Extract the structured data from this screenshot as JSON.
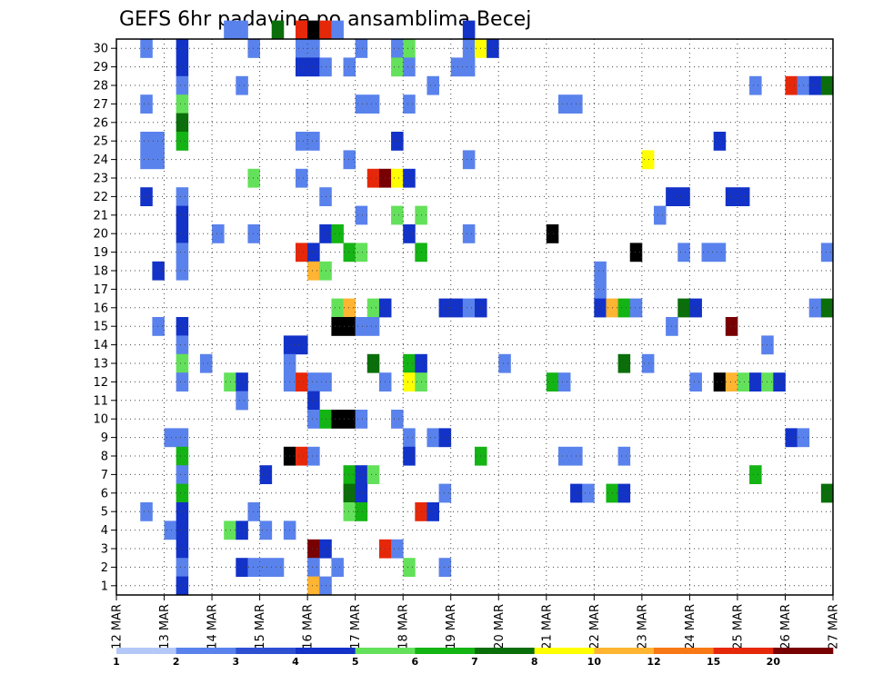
{
  "chart_data": {
    "type": "heatmap",
    "title": "GEFS 6hr padavine po ansamblima Becej",
    "xlabel": "",
    "ylabel": "",
    "x_tick_labels": [
      "12 MAR",
      "13 MAR",
      "14 MAR",
      "15 MAR",
      "16 MAR",
      "17 MAR",
      "18 MAR",
      "19 MAR",
      "20 MAR",
      "21 MAR",
      "22 MAR",
      "23 MAR",
      "24 MAR",
      "25 MAR",
      "26 MAR",
      "27 MAR"
    ],
    "y_tick_labels": [
      "1",
      "2",
      "3",
      "4",
      "5",
      "6",
      "7",
      "8",
      "9",
      "10",
      "11",
      "12",
      "13",
      "14",
      "15",
      "16",
      "17",
      "18",
      "19",
      "20",
      "21",
      "22",
      "23",
      "24",
      "25",
      "26",
      "27",
      "28",
      "29",
      "30"
    ],
    "time_steps": 60,
    "members": 30,
    "grid": true,
    "legend": {
      "position": "bottom",
      "labels": [
        "1",
        "2",
        "3",
        "4",
        "5",
        "6",
        "7",
        "8",
        "10",
        "12",
        "15",
        "20"
      ],
      "colors": [
        "#b4c8f8",
        "#5a82ec",
        "#2d50d2",
        "#1232c8",
        "#64e15a",
        "#14b414",
        "#0a6e0a",
        "#ffff00",
        "#ffb432",
        "#f77814",
        "#e6280a",
        "#780000"
      ]
    },
    "cells": [
      [
        30,
        9,
        1,
        1
      ],
      [
        30,
        10,
        1,
        1
      ],
      [
        30,
        13,
        6,
        1
      ],
      [
        30,
        15,
        10,
        1
      ],
      [
        30,
        16,
        12,
        1
      ],
      [
        30,
        17,
        10,
        1
      ],
      [
        30,
        18,
        1,
        1
      ],
      [
        30,
        29,
        3,
        1
      ],
      [
        29,
        2,
        1,
        1
      ],
      [
        29,
        5,
        3,
        1
      ],
      [
        29,
        11,
        1,
        1
      ],
      [
        29,
        15,
        1,
        2
      ],
      [
        29,
        20,
        1,
        1
      ],
      [
        29,
        23,
        1,
        1
      ],
      [
        29,
        24,
        4,
        1
      ],
      [
        29,
        29,
        1,
        1
      ],
      [
        29,
        30,
        7,
        1
      ],
      [
        29,
        31,
        3,
        1
      ],
      [
        28,
        5,
        3,
        1
      ],
      [
        28,
        15,
        3,
        2
      ],
      [
        28,
        17,
        1,
        1
      ],
      [
        28,
        19,
        1,
        1
      ],
      [
        28,
        23,
        4,
        1
      ],
      [
        28,
        24,
        1,
        1
      ],
      [
        28,
        28,
        1,
        2
      ],
      [
        27,
        5,
        1,
        1
      ],
      [
        27,
        10,
        1,
        1
      ],
      [
        27,
        26,
        1,
        1
      ],
      [
        27,
        53,
        1,
        1
      ],
      [
        27,
        56,
        10,
        1
      ],
      [
        27,
        57,
        1,
        1
      ],
      [
        27,
        58,
        3,
        1
      ],
      [
        27,
        59,
        6,
        1
      ],
      [
        26,
        2,
        1,
        1
      ],
      [
        26,
        5,
        4,
        1
      ],
      [
        26,
        20,
        1,
        2
      ],
      [
        26,
        24,
        1,
        1
      ],
      [
        26,
        37,
        1,
        2
      ],
      [
        25,
        5,
        6,
        1
      ],
      [
        24,
        2,
        1,
        2
      ],
      [
        24,
        5,
        5,
        1
      ],
      [
        24,
        15,
        1,
        2
      ],
      [
        24,
        23,
        3,
        1
      ],
      [
        24,
        50,
        3,
        1
      ],
      [
        23,
        2,
        1,
        2
      ],
      [
        23,
        19,
        1,
        1
      ],
      [
        23,
        29,
        1,
        1
      ],
      [
        23,
        44,
        7,
        1
      ],
      [
        22,
        11,
        4,
        1
      ],
      [
        22,
        15,
        1,
        1
      ],
      [
        22,
        21,
        10,
        1
      ],
      [
        22,
        22,
        11,
        1
      ],
      [
        22,
        23,
        7,
        1
      ],
      [
        22,
        24,
        3,
        1
      ],
      [
        21,
        2,
        3,
        1
      ],
      [
        21,
        5,
        1,
        1
      ],
      [
        21,
        17,
        1,
        1
      ],
      [
        21,
        46,
        3,
        2
      ],
      [
        21,
        51,
        3,
        2
      ],
      [
        20,
        5,
        3,
        1
      ],
      [
        20,
        20,
        1,
        1
      ],
      [
        20,
        23,
        4,
        1
      ],
      [
        20,
        25,
        4,
        1
      ],
      [
        20,
        45,
        1,
        1
      ],
      [
        19,
        5,
        3,
        1
      ],
      [
        19,
        8,
        1,
        1
      ],
      [
        19,
        11,
        1,
        1
      ],
      [
        19,
        17,
        3,
        1
      ],
      [
        19,
        18,
        5,
        1
      ],
      [
        19,
        24,
        3,
        1
      ],
      [
        19,
        29,
        1,
        1
      ],
      [
        19,
        36,
        13,
        1
      ],
      [
        18,
        5,
        1,
        1
      ],
      [
        18,
        15,
        10,
        1
      ],
      [
        18,
        16,
        3,
        1
      ],
      [
        18,
        19,
        5,
        1
      ],
      [
        18,
        20,
        4,
        1
      ],
      [
        18,
        25,
        5,
        1
      ],
      [
        18,
        43,
        13,
        1
      ],
      [
        18,
        47,
        1,
        1
      ],
      [
        18,
        49,
        1,
        2
      ],
      [
        18,
        59,
        1,
        1
      ],
      [
        17,
        3,
        3,
        1
      ],
      [
        17,
        5,
        1,
        1
      ],
      [
        17,
        16,
        8,
        1
      ],
      [
        17,
        17,
        4,
        1
      ],
      [
        17,
        40,
        1,
        1
      ],
      [
        16,
        40,
        1,
        1
      ],
      [
        15,
        18,
        4,
        1
      ],
      [
        15,
        19,
        8,
        1
      ],
      [
        15,
        21,
        4,
        1
      ],
      [
        15,
        22,
        3,
        1
      ],
      [
        15,
        27,
        3,
        2
      ],
      [
        15,
        29,
        1,
        1
      ],
      [
        15,
        30,
        3,
        1
      ],
      [
        15,
        40,
        3,
        1
      ],
      [
        15,
        41,
        8,
        1
      ],
      [
        15,
        42,
        5,
        1
      ],
      [
        15,
        43,
        1,
        1
      ],
      [
        15,
        47,
        6,
        1
      ],
      [
        15,
        48,
        3,
        1
      ],
      [
        15,
        58,
        1,
        1
      ],
      [
        15,
        59,
        6,
        1
      ],
      [
        14,
        3,
        1,
        1
      ],
      [
        14,
        5,
        3,
        1
      ],
      [
        14,
        18,
        13,
        2
      ],
      [
        14,
        20,
        1,
        2
      ],
      [
        14,
        46,
        1,
        1
      ],
      [
        14,
        51,
        11,
        1
      ],
      [
        13,
        5,
        1,
        1
      ],
      [
        13,
        14,
        3,
        2
      ],
      [
        13,
        54,
        1,
        1
      ],
      [
        12,
        5,
        4,
        1
      ],
      [
        12,
        7,
        1,
        1
      ],
      [
        12,
        14,
        1,
        1
      ],
      [
        12,
        21,
        6,
        1
      ],
      [
        12,
        24,
        5,
        1
      ],
      [
        12,
        25,
        3,
        1
      ],
      [
        12,
        32,
        1,
        1
      ],
      [
        12,
        42,
        6,
        1
      ],
      [
        12,
        44,
        1,
        1
      ],
      [
        11,
        5,
        1,
        1
      ],
      [
        11,
        9,
        4,
        1
      ],
      [
        11,
        10,
        3,
        1
      ],
      [
        11,
        14,
        1,
        1
      ],
      [
        11,
        15,
        10,
        1
      ],
      [
        11,
        16,
        1,
        2
      ],
      [
        11,
        22,
        1,
        1
      ],
      [
        11,
        24,
        7,
        1
      ],
      [
        11,
        25,
        4,
        1
      ],
      [
        11,
        36,
        5,
        1
      ],
      [
        11,
        37,
        1,
        1
      ],
      [
        11,
        48,
        1,
        1
      ],
      [
        11,
        50,
        13,
        1
      ],
      [
        11,
        51,
        8,
        1
      ],
      [
        11,
        52,
        4,
        1
      ],
      [
        11,
        53,
        3,
        1
      ],
      [
        11,
        54,
        4,
        1
      ],
      [
        11,
        55,
        3,
        1
      ],
      [
        10,
        10,
        1,
        1
      ],
      [
        10,
        16,
        3,
        1
      ],
      [
        9,
        16,
        1,
        1
      ],
      [
        9,
        17,
        5,
        1
      ],
      [
        9,
        18,
        13,
        1
      ],
      [
        9,
        19,
        12,
        1
      ],
      [
        9,
        20,
        1,
        1
      ],
      [
        9,
        23,
        1,
        1
      ],
      [
        8,
        4,
        1,
        2
      ],
      [
        8,
        24,
        1,
        1
      ],
      [
        8,
        26,
        1,
        1
      ],
      [
        8,
        27,
        3,
        1
      ],
      [
        8,
        56,
        3,
        1
      ],
      [
        8,
        57,
        1,
        1
      ],
      [
        7,
        5,
        5,
        1
      ],
      [
        7,
        14,
        13,
        1
      ],
      [
        7,
        15,
        10,
        1
      ],
      [
        7,
        16,
        1,
        1
      ],
      [
        7,
        24,
        3,
        1
      ],
      [
        7,
        30,
        5,
        1
      ],
      [
        7,
        37,
        1,
        2
      ],
      [
        7,
        42,
        1,
        1
      ],
      [
        6,
        5,
        1,
        1
      ],
      [
        6,
        12,
        3,
        1
      ],
      [
        6,
        19,
        5,
        1
      ],
      [
        6,
        20,
        3,
        1
      ],
      [
        6,
        21,
        4,
        1
      ],
      [
        6,
        53,
        5,
        1
      ],
      [
        5,
        5,
        5,
        1
      ],
      [
        5,
        19,
        6,
        1
      ],
      [
        5,
        20,
        3,
        1
      ],
      [
        5,
        27,
        1,
        1
      ],
      [
        5,
        38,
        3,
        1
      ],
      [
        5,
        39,
        1,
        1
      ],
      [
        5,
        41,
        5,
        1
      ],
      [
        5,
        42,
        3,
        1
      ],
      [
        5,
        59,
        6,
        1
      ],
      [
        4,
        2,
        1,
        1
      ],
      [
        4,
        5,
        3,
        1
      ],
      [
        4,
        11,
        1,
        1
      ],
      [
        4,
        19,
        4,
        1
      ],
      [
        4,
        20,
        5,
        1
      ],
      [
        4,
        25,
        10,
        1
      ],
      [
        4,
        26,
        3,
        1
      ],
      [
        3,
        4,
        1,
        1
      ],
      [
        3,
        5,
        3,
        1
      ],
      [
        3,
        9,
        4,
        1
      ],
      [
        3,
        10,
        3,
        1
      ],
      [
        3,
        12,
        1,
        1
      ],
      [
        3,
        14,
        1,
        1
      ],
      [
        2,
        5,
        3,
        1
      ],
      [
        2,
        16,
        11,
        1
      ],
      [
        2,
        17,
        3,
        1
      ],
      [
        2,
        22,
        10,
        1
      ],
      [
        2,
        23,
        1,
        1
      ],
      [
        1,
        5,
        1,
        1
      ],
      [
        1,
        10,
        3,
        1
      ],
      [
        1,
        11,
        1,
        3
      ],
      [
        1,
        16,
        1,
        1
      ],
      [
        1,
        18,
        1,
        1
      ],
      [
        1,
        24,
        4,
        1
      ],
      [
        1,
        27,
        1,
        1
      ],
      [
        0,
        5,
        3,
        1
      ],
      [
        0,
        16,
        8,
        1
      ],
      [
        0,
        17,
        1,
        1
      ]
    ]
  }
}
